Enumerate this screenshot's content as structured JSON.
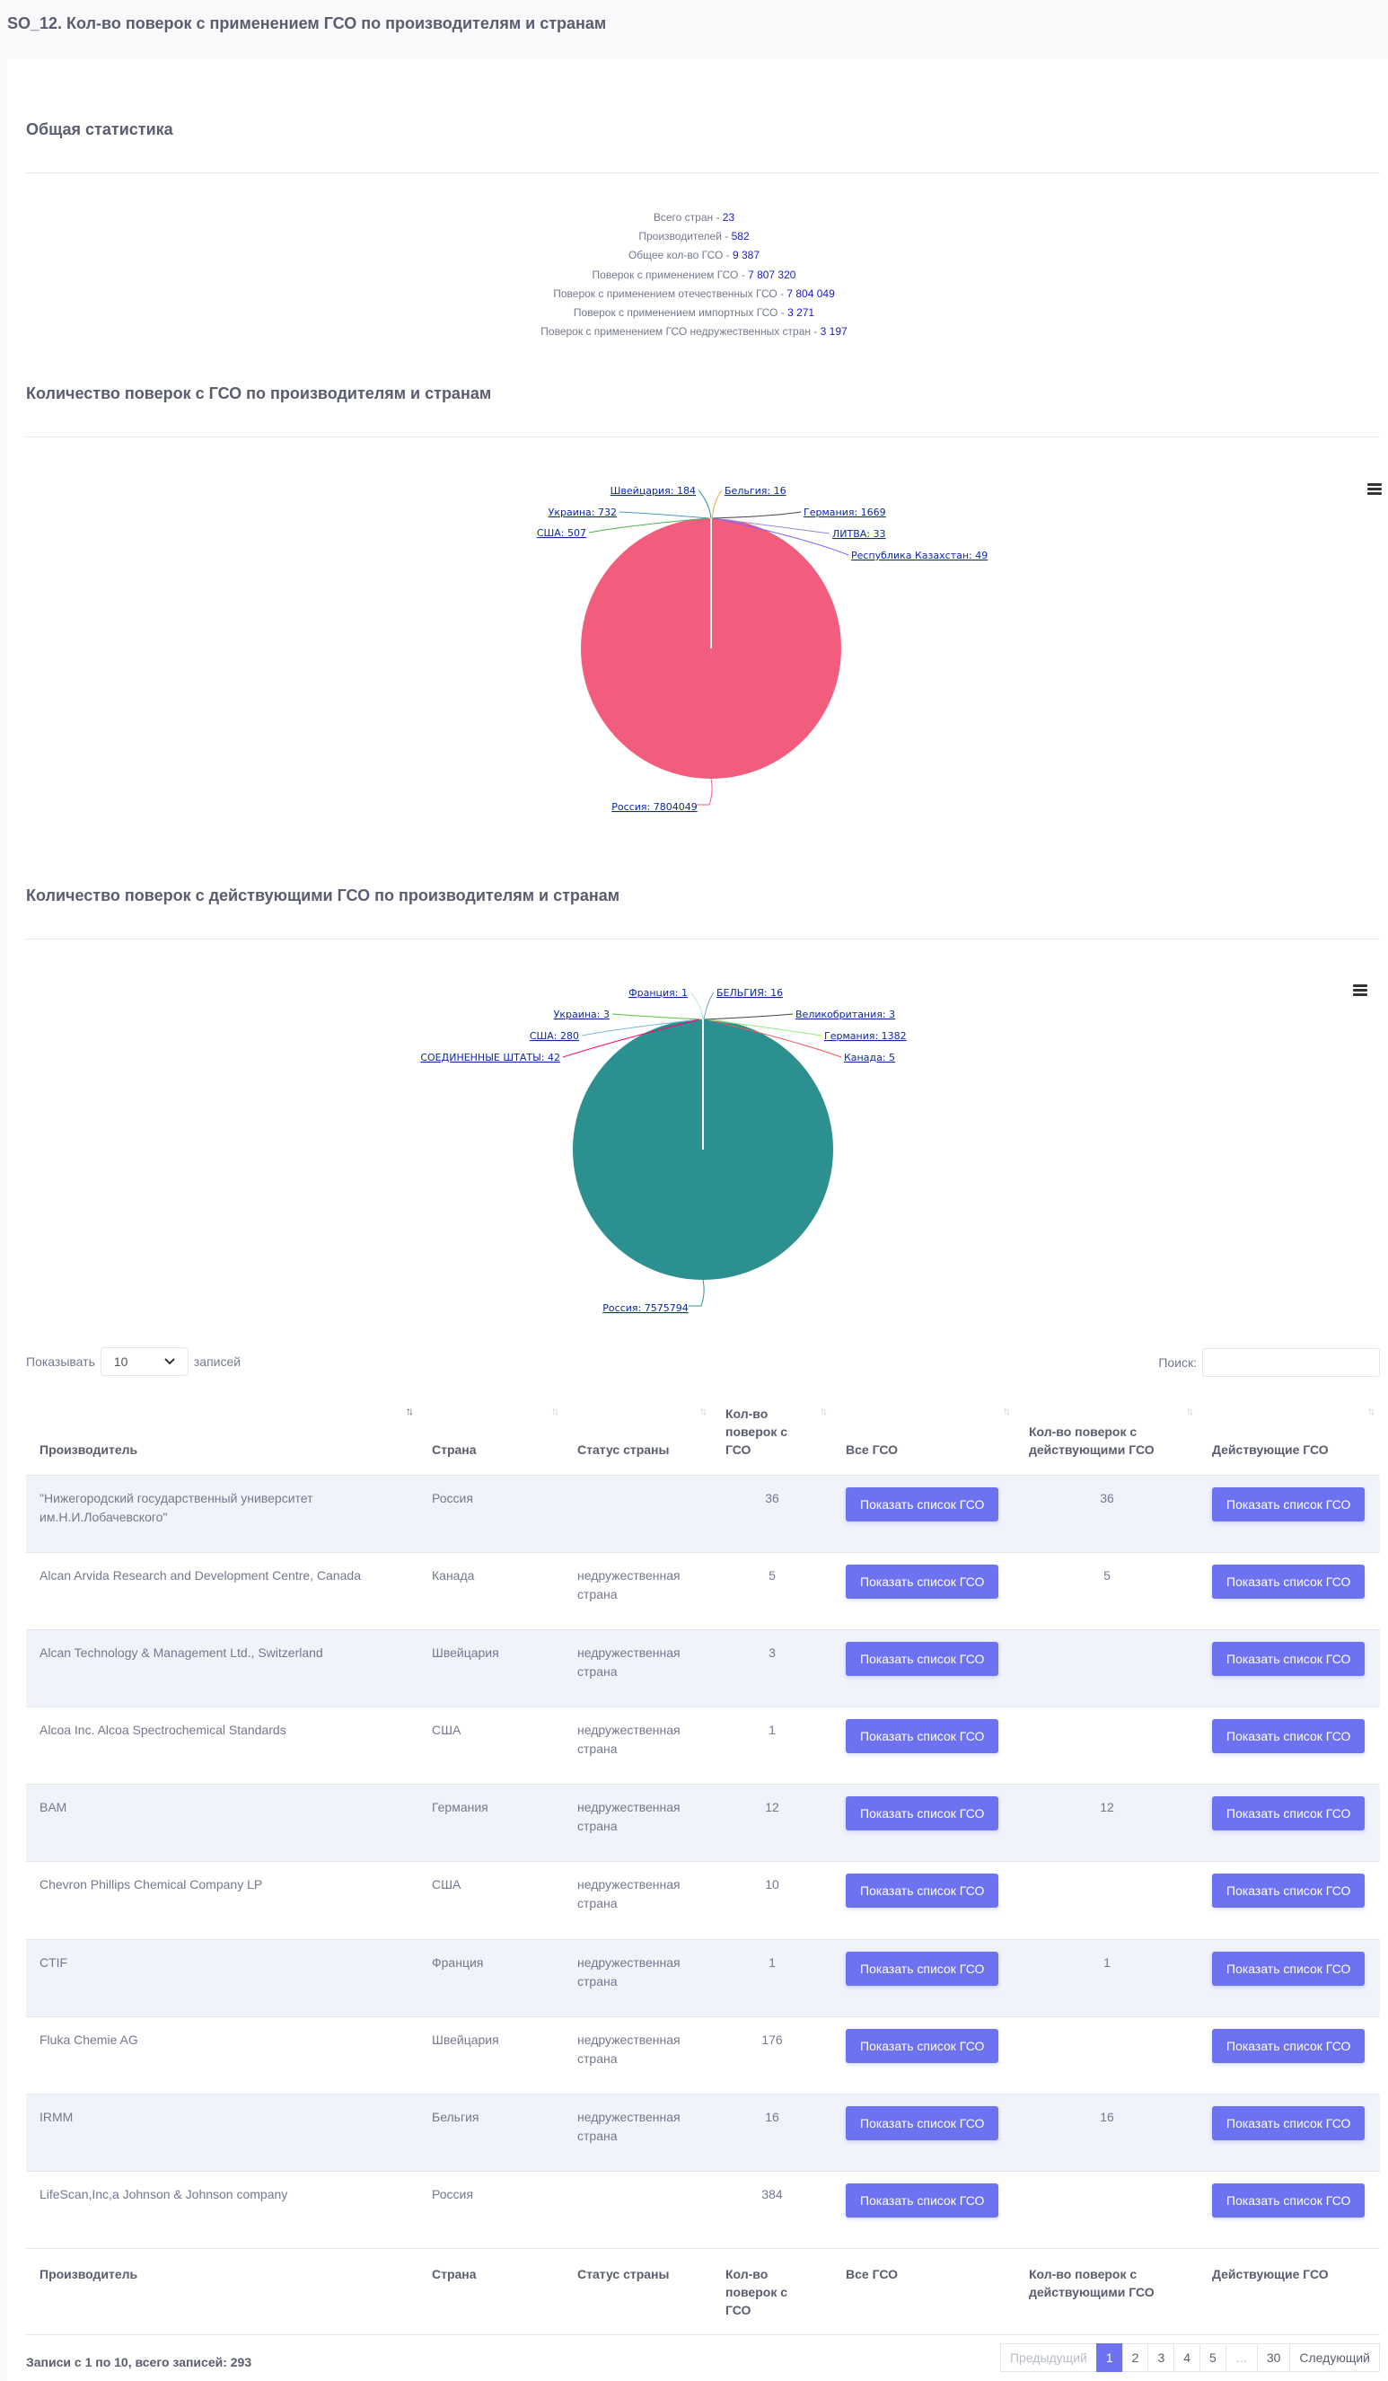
{
  "page": {
    "title": "SO_12. Кол-во поверок с применением ГСО по производителям и странам"
  },
  "stats": {
    "title": "Общая статистика",
    "rows": [
      {
        "label": "Всего стран - ",
        "value": "23"
      },
      {
        "label": "Производителей - ",
        "value": "582"
      },
      {
        "label": "Общее кол-во ГСО - ",
        "value": "9 387"
      },
      {
        "label": "Поверок с применением ГСО - ",
        "value": "7 807 320"
      },
      {
        "label": "Поверок с применением отечественных ГСО - ",
        "value": "7 804 049"
      },
      {
        "label": "Поверок с применением импортных ГСО - ",
        "value": "3 271"
      },
      {
        "label": "Поверок с применением ГСО недружественных стран - ",
        "value": "3 197"
      }
    ]
  },
  "chart_data": [
    {
      "type": "pie",
      "title": "Количество поверок с ГСО по производителям и странам",
      "menu_icon": "hamburger-icon",
      "slices": [
        {
          "name": "Россия",
          "value": 7804049,
          "color": "#f25d7e",
          "label": "Россия: 7804049"
        },
        {
          "name": "Республика Казахстан",
          "value": 49,
          "color": "#7b61ff",
          "label": "Республика Казахстан: 49"
        },
        {
          "name": "ЛИТВА",
          "value": 33,
          "color": "#8a8dd9",
          "label": "ЛИТВА: 33"
        },
        {
          "name": "Германия",
          "value": 1669,
          "color": "#444444",
          "label": "Германия: 1669"
        },
        {
          "name": "Бельгия",
          "value": 16,
          "color": "#f4a742",
          "label": "Бельгия: 16"
        },
        {
          "name": "Швейцария",
          "value": 184,
          "color": "#2a9d8f",
          "label": "Швейцария: 184"
        },
        {
          "name": "Украина",
          "value": 732,
          "color": "#4b97d1",
          "label": "Украина: 732"
        },
        {
          "name": "США",
          "value": 507,
          "color": "#4caf50",
          "label": "США: 507"
        }
      ]
    },
    {
      "type": "pie",
      "title": "Количество поверок с действующими ГСО по производителям и странам",
      "menu_icon": "hamburger-icon",
      "slices": [
        {
          "name": "Россия",
          "value": 7575794,
          "color": "#2b908f",
          "label": "Россия: 7575794"
        },
        {
          "name": "Канада",
          "value": 5,
          "color": "#f45b5b",
          "label": "Канада: 5"
        },
        {
          "name": "Германия",
          "value": 1382,
          "color": "#90ee7e",
          "label": "Германия: 1382"
        },
        {
          "name": "Великобритания",
          "value": 3,
          "color": "#434348",
          "label": "Великобритания: 3"
        },
        {
          "name": "БЕЛЬГИЯ",
          "value": 16,
          "color": "#7798bf",
          "label": "БЕЛЬГИЯ: 16"
        },
        {
          "name": "Франция",
          "value": 1,
          "color": "#aaeeee",
          "label": "Франция: 1"
        },
        {
          "name": "Украина",
          "value": 3,
          "color": "#55bf3b",
          "label": "Украина: 3"
        },
        {
          "name": "США",
          "value": 280,
          "color": "#7cb5ec",
          "label": "США: 280"
        },
        {
          "name": "СОЕДИНЕННЫЕ ШТАТЫ",
          "value": 42,
          "color": "#ff0066",
          "label": "СОЕДИНЕННЫЕ ШТАТЫ: 42"
        }
      ]
    }
  ],
  "controls": {
    "show_label": "Показывать",
    "page_size": "10",
    "records_label": "записей",
    "search_label": "Поиск:",
    "search_value": ""
  },
  "table": {
    "headers": [
      "Производитель",
      "Страна",
      "Статус страны",
      "Кол-во поверок с ГСО",
      "Все ГСО",
      "Кол-во поверок с действующими ГСО",
      "Действующие ГСО"
    ],
    "button_label": "Показать список ГСО",
    "rows": [
      {
        "maker": "\"Нижегородский государственный университет им.Н.И.Лобачевского\"",
        "country": "Россия",
        "status": "",
        "count": "36",
        "active": "36"
      },
      {
        "maker": "Alcan Arvida Research and Development Centre, Canada",
        "country": "Канада",
        "status": "недружественная страна",
        "count": "5",
        "active": "5"
      },
      {
        "maker": "Alcan Technology & Management Ltd., Switzerland",
        "country": "Швейцария",
        "status": "недружественная страна",
        "count": "3",
        "active": ""
      },
      {
        "maker": "Alcoa Inc. Alcoa Spectrochemical Standards",
        "country": "США",
        "status": "недружественная страна",
        "count": "1",
        "active": ""
      },
      {
        "maker": "BAM",
        "country": "Германия",
        "status": "недружественная страна",
        "count": "12",
        "active": "12"
      },
      {
        "maker": "Chevron Phillips Chemical Company LP",
        "country": "США",
        "status": "недружественная страна",
        "count": "10",
        "active": ""
      },
      {
        "maker": "CTIF",
        "country": "Франция",
        "status": "недружественная страна",
        "count": "1",
        "active": "1"
      },
      {
        "maker": "Fluka Chemie AG",
        "country": "Швейцария",
        "status": "недружественная страна",
        "count": "176",
        "active": ""
      },
      {
        "maker": "IRMM",
        "country": "Бельгия",
        "status": "недружественная страна",
        "count": "16",
        "active": "16"
      },
      {
        "maker": "LifeScan,Inc,a Johnson & Johnson company",
        "country": "Россия",
        "status": "",
        "count": "384",
        "active": ""
      }
    ]
  },
  "footer": {
    "info": "Записи с 1 по 10, всего записей: 293",
    "prev": "Предыдущий",
    "pages": [
      "1",
      "2",
      "3",
      "4",
      "5",
      "…",
      "30"
    ],
    "next": "Следующий"
  }
}
